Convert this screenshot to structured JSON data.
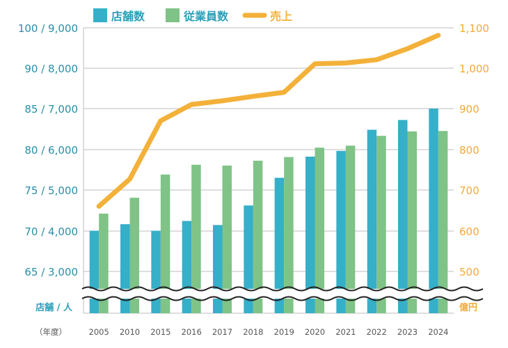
{
  "chart_data": {
    "type": "bar",
    "categories": [
      "2005",
      "2010",
      "2015",
      "2016",
      "2017",
      "2018",
      "2019",
      "2020",
      "2021",
      "2022",
      "2023",
      "2024"
    ],
    "series": [
      {
        "name": "店舗数",
        "kind": "bar",
        "axis": "left",
        "color": "#36afc8",
        "values": [
          70,
          70.8,
          70,
          71.2,
          70.7,
          73.1,
          76.5,
          79.1,
          79.8,
          82.4,
          83.6,
          85
        ]
      },
      {
        "name": "従業員数",
        "kind": "bar",
        "axis": "left-secondary",
        "color": "#7fc387",
        "values": [
          4420,
          4810,
          5380,
          5620,
          5600,
          5720,
          5810,
          6040,
          6090,
          6330,
          6440,
          6450
        ]
      },
      {
        "name": "売上",
        "kind": "line",
        "axis": "right",
        "color": "#f3b13a",
        "values": [
          660,
          727,
          870,
          910,
          919,
          930,
          940,
          1010,
          1012,
          1020,
          1047,
          1080
        ]
      }
    ],
    "left_axis": {
      "ticks": [
        "100 / 9,000",
        "90 / 8,000",
        "85 / 7,000",
        "80 / 6,000",
        "75 / 5,000",
        "70 / 4,000",
        "65 / 3,000"
      ]
    },
    "right_axis": {
      "ticks": [
        "1,100",
        "1,000",
        "900",
        "800",
        "700",
        "600",
        "500"
      ]
    },
    "ylim_right": [
      500,
      1100
    ],
    "ylim_employees": [
      3000,
      9000
    ],
    "stores_scale": [
      [
        65,
        3000
      ],
      [
        70,
        4000
      ],
      [
        75,
        5000
      ],
      [
        80,
        6000
      ],
      [
        85,
        7000
      ],
      [
        90,
        8000
      ],
      [
        100,
        9000
      ]
    ],
    "left_unit": "店舗 / 人",
    "right_unit": "億円",
    "x_unit": "（年度）",
    "axis_break": true,
    "grid": true,
    "legend_position": "top",
    "colors": {
      "left_text": "#2a8ea6",
      "right_text": "#f2a93b",
      "grid": "#bdbdbd",
      "unit_left": "#2aa0b8",
      "unit_right": "#f2a93b"
    }
  }
}
